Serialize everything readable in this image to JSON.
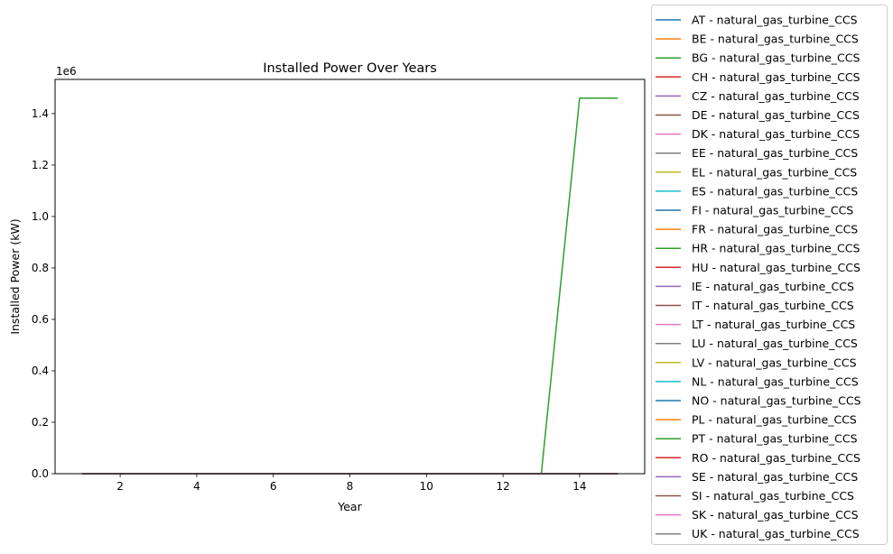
{
  "chart_data": {
    "type": "line",
    "title": "Installed Power Over Years",
    "xlabel": "Year",
    "ylabel": "Installed Power (kW)",
    "y_offset_label": "1e6",
    "xlim": [
      0.3,
      15.7
    ],
    "ylim": [
      0,
      1.533
    ],
    "x_ticks": [
      2,
      4,
      6,
      8,
      10,
      12,
      14
    ],
    "x_tick_labels": [
      "2",
      "4",
      "6",
      "8",
      "10",
      "12",
      "14"
    ],
    "y_ticks": [
      0,
      0.2,
      0.4,
      0.6,
      0.8,
      1.0,
      1.2,
      1.4
    ],
    "y_tick_labels": [
      "0.0",
      "0.2",
      "0.4",
      "0.6",
      "0.8",
      "1.0",
      "1.2",
      "1.4"
    ],
    "y_unit_note": "values in 1e6 kW",
    "grid": false,
    "legend_position": "outside-right",
    "x": [
      1,
      2,
      3,
      4,
      5,
      6,
      7,
      8,
      9,
      10,
      11,
      12,
      13,
      14,
      15
    ],
    "series": [
      {
        "name": "AT - natural_gas_turbine_CCS",
        "color": "#1f77b4",
        "values": [
          0,
          0,
          0,
          0,
          0,
          0,
          0,
          0,
          0,
          0,
          0,
          0,
          0,
          0,
          0
        ]
      },
      {
        "name": "BE - natural_gas_turbine_CCS",
        "color": "#ff7f0e",
        "values": [
          0,
          0,
          0,
          0,
          0,
          0,
          0,
          0,
          0,
          0,
          0,
          0,
          0,
          0,
          0
        ]
      },
      {
        "name": "BG - natural_gas_turbine_CCS",
        "color": "#2ca02c",
        "values": [
          0,
          0,
          0,
          0,
          0,
          0,
          0,
          0,
          0,
          0,
          0,
          0,
          0,
          0,
          0
        ]
      },
      {
        "name": "CH - natural_gas_turbine_CCS",
        "color": "#d62728",
        "values": [
          0,
          0,
          0,
          0,
          0,
          0,
          0,
          0,
          0,
          0,
          0,
          0,
          0,
          0,
          0
        ]
      },
      {
        "name": "CZ - natural_gas_turbine_CCS",
        "color": "#9467bd",
        "values": [
          0,
          0,
          0,
          0,
          0,
          0,
          0,
          0,
          0,
          0,
          0,
          0,
          0,
          0,
          0
        ]
      },
      {
        "name": "DE - natural_gas_turbine_CCS",
        "color": "#8c564b",
        "values": [
          0,
          0,
          0,
          0,
          0,
          0,
          0,
          0,
          0,
          0,
          0,
          0,
          0,
          0,
          0
        ]
      },
      {
        "name": "DK - natural_gas_turbine_CCS",
        "color": "#e377c2",
        "values": [
          0,
          0,
          0,
          0,
          0,
          0,
          0,
          0,
          0,
          0,
          0,
          0,
          0,
          0,
          0
        ]
      },
      {
        "name": "EE - natural_gas_turbine_CCS",
        "color": "#7f7f7f",
        "values": [
          0,
          0,
          0,
          0,
          0,
          0,
          0,
          0,
          0,
          0,
          0,
          0,
          0,
          0,
          0
        ]
      },
      {
        "name": "EL - natural_gas_turbine_CCS",
        "color": "#bcbd22",
        "values": [
          0,
          0,
          0,
          0,
          0,
          0,
          0,
          0,
          0,
          0,
          0,
          0,
          0,
          0,
          0
        ]
      },
      {
        "name": "ES - natural_gas_turbine_CCS",
        "color": "#17becf",
        "values": [
          0,
          0,
          0,
          0,
          0,
          0,
          0,
          0,
          0,
          0,
          0,
          0,
          0,
          0,
          0
        ]
      },
      {
        "name": "FI - natural_gas_turbine_CCS",
        "color": "#1f77b4",
        "values": [
          0,
          0,
          0,
          0,
          0,
          0,
          0,
          0,
          0,
          0,
          0,
          0,
          0,
          0,
          0
        ]
      },
      {
        "name": "FR - natural_gas_turbine_CCS",
        "color": "#ff7f0e",
        "values": [
          0,
          0,
          0,
          0,
          0,
          0,
          0,
          0,
          0,
          0,
          0,
          0,
          0,
          0,
          0
        ]
      },
      {
        "name": "HR - natural_gas_turbine_CCS",
        "color": "#2ca02c",
        "values": [
          0,
          0,
          0,
          0,
          0,
          0,
          0,
          0,
          0,
          0,
          0,
          0,
          0,
          0,
          0
        ]
      },
      {
        "name": "HU - natural_gas_turbine_CCS",
        "color": "#d62728",
        "values": [
          0,
          0,
          0,
          0,
          0,
          0,
          0,
          0,
          0,
          0,
          0,
          0,
          0,
          0,
          0
        ]
      },
      {
        "name": "IE - natural_gas_turbine_CCS",
        "color": "#9467bd",
        "values": [
          0,
          0,
          0,
          0,
          0,
          0,
          0,
          0,
          0,
          0,
          0,
          0,
          0,
          0,
          0
        ]
      },
      {
        "name": "IT - natural_gas_turbine_CCS",
        "color": "#8c564b",
        "values": [
          0,
          0,
          0,
          0,
          0,
          0,
          0,
          0,
          0,
          0,
          0,
          0,
          0,
          0,
          0
        ]
      },
      {
        "name": "LT - natural_gas_turbine_CCS",
        "color": "#e377c2",
        "values": [
          0,
          0,
          0,
          0,
          0,
          0,
          0,
          0,
          0,
          0,
          0,
          0,
          0,
          0,
          0
        ]
      },
      {
        "name": "LU - natural_gas_turbine_CCS",
        "color": "#7f7f7f",
        "values": [
          0,
          0,
          0,
          0,
          0,
          0,
          0,
          0,
          0,
          0,
          0,
          0,
          0,
          0,
          0
        ]
      },
      {
        "name": "LV - natural_gas_turbine_CCS",
        "color": "#bcbd22",
        "values": [
          0,
          0,
          0,
          0,
          0,
          0,
          0,
          0,
          0,
          0,
          0,
          0,
          0,
          0,
          0
        ]
      },
      {
        "name": "NL - natural_gas_turbine_CCS",
        "color": "#17becf",
        "values": [
          0,
          0,
          0,
          0,
          0,
          0,
          0,
          0,
          0,
          0,
          0,
          0,
          0,
          0,
          0
        ]
      },
      {
        "name": "NO - natural_gas_turbine_CCS",
        "color": "#1f77b4",
        "values": [
          0,
          0,
          0,
          0,
          0,
          0,
          0,
          0,
          0,
          0,
          0,
          0,
          0,
          0,
          0
        ]
      },
      {
        "name": "PL - natural_gas_turbine_CCS",
        "color": "#ff7f0e",
        "values": [
          0,
          0,
          0,
          0,
          0,
          0,
          0,
          0,
          0,
          0,
          0,
          0,
          0,
          0,
          0
        ]
      },
      {
        "name": "PT - natural_gas_turbine_CCS",
        "color": "#2ca02c",
        "values": [
          0,
          0,
          0,
          0,
          0,
          0,
          0,
          0,
          0,
          0,
          0,
          0,
          0,
          1.46,
          1.46
        ]
      },
      {
        "name": "RO - natural_gas_turbine_CCS",
        "color": "#d62728",
        "values": [
          0,
          0,
          0,
          0,
          0,
          0,
          0,
          0,
          0,
          0,
          0,
          0,
          0,
          0,
          0
        ]
      },
      {
        "name": "SE - natural_gas_turbine_CCS",
        "color": "#9467bd",
        "values": [
          0,
          0,
          0,
          0,
          0,
          0,
          0,
          0,
          0,
          0,
          0,
          0,
          0,
          0,
          0
        ]
      },
      {
        "name": "SI - natural_gas_turbine_CCS",
        "color": "#8c564b",
        "values": [
          0,
          0,
          0,
          0,
          0,
          0,
          0,
          0,
          0,
          0,
          0,
          0,
          0,
          0,
          0
        ]
      },
      {
        "name": "SK - natural_gas_turbine_CCS",
        "color": "#e377c2",
        "values": [
          0,
          0,
          0,
          0,
          0,
          0,
          0,
          0,
          0,
          0,
          0,
          0,
          0,
          0,
          0
        ]
      },
      {
        "name": "UK - natural_gas_turbine_CCS",
        "color": "#7f7f7f",
        "values": [
          0,
          0,
          0,
          0,
          0,
          0,
          0,
          0,
          0,
          0,
          0,
          0,
          0,
          0,
          0
        ]
      }
    ]
  }
}
